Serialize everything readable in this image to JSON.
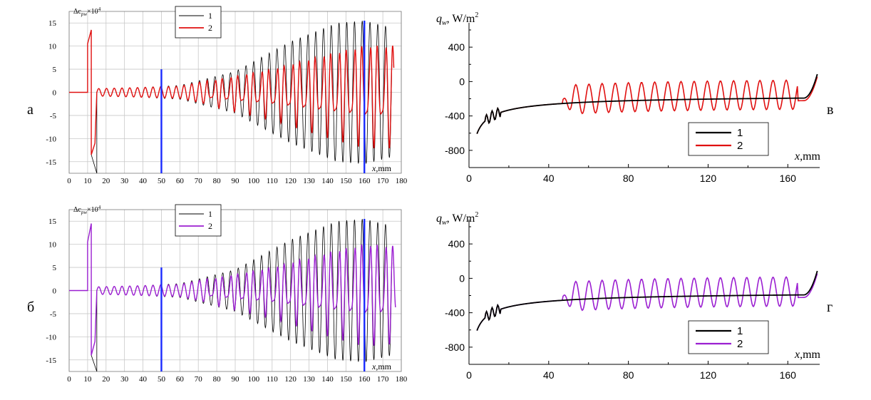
{
  "panels": {
    "a": {
      "letter": "а",
      "ylabel_main": "Δc",
      "ylabel_sub": "pw",
      "ylabel_tail": "×10",
      "ylabel_sup": "4",
      "xlabel_var": "x",
      "xlabel_unit": ",mm"
    },
    "b": {
      "letter": "б",
      "ylabel_main": "Δc",
      "ylabel_sub": "pw",
      "ylabel_tail": "×10",
      "ylabel_sup": "4",
      "xlabel_var": "x",
      "xlabel_unit": ",mm"
    },
    "c": {
      "letter": "в",
      "ylabel_main": "q",
      "ylabel_sub": "w",
      "ylabel_tail": ", W/m",
      "ylabel_sup": "2",
      "xlabel_var": "x",
      "xlabel_unit": ",mm"
    },
    "d": {
      "letter": "г",
      "ylabel_main": "q",
      "ylabel_sub": "w",
      "ylabel_tail": ", W/m",
      "ylabel_sup": "2",
      "xlabel_var": "x",
      "xlabel_unit": ",mm"
    }
  },
  "chart_data": [
    {
      "panel": "a",
      "type": "line",
      "xlim": [
        0,
        180
      ],
      "ylim": [
        -17.5,
        17.5
      ],
      "xticks": [
        0,
        10,
        20,
        30,
        40,
        50,
        60,
        70,
        80,
        90,
        100,
        110,
        120,
        130,
        140,
        150,
        160,
        170,
        180
      ],
      "yticks": [
        -15,
        -10,
        -5,
        0,
        5,
        10,
        15
      ],
      "grid": true,
      "legend_position": "top-center",
      "marker_lines": [
        {
          "x": 50,
          "y": [
            -17.5,
            5
          ]
        },
        {
          "x": 160,
          "y": [
            -17.5,
            15.5
          ]
        }
      ],
      "series": [
        {
          "name": "1",
          "color": "#000000",
          "width": 0.8,
          "x_start": 0,
          "x_end": 175,
          "jump": {
            "x": 10,
            "y_top": 10.5,
            "x2": 12,
            "y2": 13.5,
            "x3": 12,
            "y_bottom": -13.5,
            "x4": 15,
            "y4": -17.5
          },
          "onset": 15,
          "wavelength": 4.2,
          "env_in": [
            [
              15,
              0.8
            ],
            [
              35,
              1.0
            ],
            [
              60,
              1.5
            ],
            [
              90,
              4.5
            ],
            [
              120,
              11
            ],
            [
              145,
              15
            ],
            [
              160,
              15.5
            ],
            [
              175,
              14
            ]
          ]
        },
        {
          "name": "2",
          "color": "#e01010",
          "width": 1.4,
          "x_start": 0,
          "x_end": 176,
          "jump": {
            "x": 10,
            "y_top": 10.5,
            "x2": 12,
            "y2": 13.5,
            "x3": 12,
            "y_bottom": -13.5,
            "x4": 14,
            "y4": -11
          },
          "onset": 15,
          "wavelength": 4.2,
          "env_in": [
            [
              15,
              0.8
            ],
            [
              35,
              1.0
            ],
            [
              60,
              1.3
            ],
            [
              80,
              3.0
            ],
            [
              110,
              5.5
            ],
            [
              140,
              9
            ],
            [
              160,
              11
            ],
            [
              176,
              11
            ]
          ]
        }
      ]
    },
    {
      "panel": "b",
      "type": "line",
      "xlim": [
        0,
        180
      ],
      "ylim": [
        -17.5,
        17.5
      ],
      "xticks": [
        0,
        10,
        20,
        30,
        40,
        50,
        60,
        70,
        80,
        90,
        100,
        110,
        120,
        130,
        140,
        150,
        160,
        170,
        180
      ],
      "yticks": [
        -15,
        -10,
        -5,
        0,
        5,
        10,
        15
      ],
      "grid": true,
      "legend_position": "top-center",
      "marker_lines": [
        {
          "x": 50,
          "y": [
            -17.5,
            5
          ]
        },
        {
          "x": 160,
          "y": [
            -17.5,
            15.5
          ]
        }
      ],
      "series": [
        {
          "name": "1",
          "color": "#000000",
          "width": 0.8,
          "x_start": 0,
          "x_end": 175,
          "jump": {
            "x": 10,
            "y_top": 10.5,
            "x2": 12,
            "y2": 14.5,
            "x3": 12,
            "y_bottom": -14,
            "x4": 15,
            "y4": -17.5
          },
          "onset": 15,
          "wavelength": 4.2,
          "env_in": [
            [
              15,
              0.8
            ],
            [
              35,
              1.0
            ],
            [
              60,
              1.5
            ],
            [
              90,
              4.5
            ],
            [
              120,
              11
            ],
            [
              145,
              15
            ],
            [
              160,
              15.5
            ],
            [
              175,
              14
            ]
          ]
        },
        {
          "name": "2",
          "color": "#9b1fd1",
          "width": 1.4,
          "x_start": 0,
          "x_end": 177,
          "jump": {
            "x": 10,
            "y_top": 10.5,
            "x2": 12,
            "y2": 14.5,
            "x3": 12,
            "y_bottom": -14,
            "x4": 14,
            "y4": -11
          },
          "onset": 15,
          "wavelength": 4.2,
          "env_in": [
            [
              15,
              0.8
            ],
            [
              35,
              1.0
            ],
            [
              60,
              1.3
            ],
            [
              80,
              3.0
            ],
            [
              110,
              5.5
            ],
            [
              140,
              9
            ],
            [
              160,
              11
            ],
            [
              177,
              10.5
            ]
          ]
        }
      ]
    },
    {
      "panel": "c",
      "type": "line",
      "xlim": [
        0,
        176
      ],
      "ylim": [
        -1000,
        600
      ],
      "xticks": [
        0,
        40,
        80,
        120,
        160
      ],
      "yticks": [
        -800,
        -400,
        0,
        400
      ],
      "grid": false,
      "legend_position": "bottom-right",
      "series": [
        {
          "name": "1",
          "color": "#000000",
          "width": 1.8,
          "x_start": 4,
          "x_end": 175,
          "base": true
        },
        {
          "name": "2",
          "color": "#e01010",
          "width": 1.6,
          "x_start": 4,
          "x_end": 175,
          "base": true,
          "bumps": [
            [
              55,
              50
            ],
            [
              59,
              60
            ],
            [
              63,
              70
            ],
            [
              69,
              80
            ],
            [
              74,
              80
            ],
            [
              80,
              80
            ],
            [
              86,
              80
            ],
            [
              93,
              80
            ],
            [
              99,
              80
            ],
            [
              105,
              80
            ],
            [
              112,
              80
            ],
            [
              118,
              80
            ],
            [
              125,
              80
            ],
            [
              131,
              80
            ],
            [
              138,
              80
            ],
            [
              144,
              80
            ],
            [
              151,
              80
            ],
            [
              157,
              80
            ]
          ],
          "bump_top": -10,
          "bump_bottom": -420
        }
      ]
    },
    {
      "panel": "d",
      "type": "line",
      "xlim": [
        0,
        176
      ],
      "ylim": [
        -1000,
        600
      ],
      "xticks": [
        0,
        40,
        80,
        120,
        160
      ],
      "yticks": [
        -800,
        -400,
        0,
        400
      ],
      "grid": false,
      "legend_position": "bottom-right",
      "series": [
        {
          "name": "1",
          "color": "#000000",
          "width": 1.8,
          "x_start": 4,
          "x_end": 175,
          "base": true
        },
        {
          "name": "2",
          "color": "#9b1fd1",
          "width": 1.6,
          "x_start": 4,
          "x_end": 175,
          "base": true,
          "bumps": [
            [
              53,
              50
            ],
            [
              57,
              60
            ],
            [
              63,
              70
            ],
            [
              69,
              80
            ],
            [
              75,
              80
            ],
            [
              80,
              80
            ],
            [
              86,
              80
            ],
            [
              93,
              80
            ],
            [
              99,
              80
            ],
            [
              106,
              80
            ],
            [
              112,
              80
            ],
            [
              118,
              80
            ],
            [
              125,
              80
            ],
            [
              131,
              80
            ],
            [
              138,
              80
            ],
            [
              144,
              80
            ],
            [
              151,
              80
            ],
            [
              157,
              80
            ]
          ],
          "bump_top": -10,
          "bump_bottom": -420
        }
      ]
    }
  ]
}
